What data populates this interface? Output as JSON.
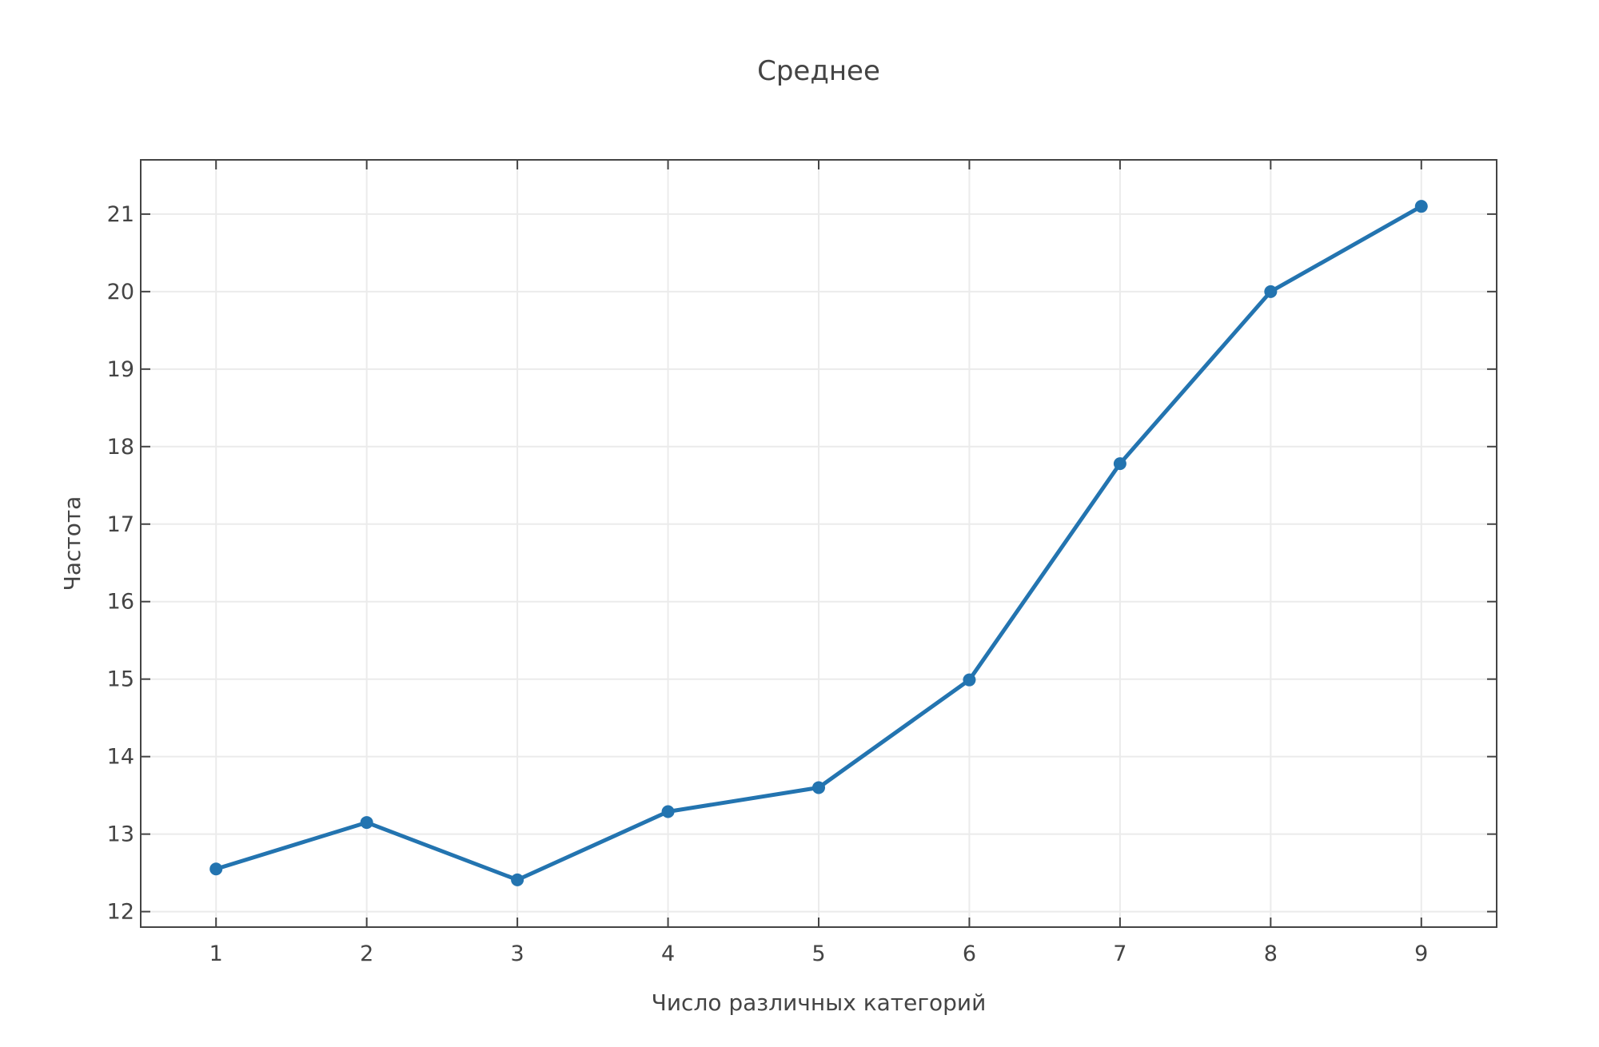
{
  "chart_data": {
    "type": "line",
    "title": "Среднее",
    "xlabel": "Число различных категорий",
    "ylabel": "Частота",
    "x": [
      1,
      2,
      3,
      4,
      5,
      6,
      7,
      8,
      9
    ],
    "series": [
      {
        "values": [
          12.55,
          13.15,
          12.41,
          13.29,
          13.6,
          14.99,
          17.78,
          20.0,
          21.1
        ],
        "color": "#2374b0"
      }
    ],
    "xlim": [
      0.5,
      9.5
    ],
    "ylim": [
      11.8,
      21.7
    ],
    "xticks": [
      1,
      2,
      3,
      4,
      5,
      6,
      7,
      8,
      9
    ],
    "yticks": [
      12,
      13,
      14,
      15,
      16,
      17,
      18,
      19,
      20,
      21
    ],
    "grid": true,
    "legend": "none"
  }
}
